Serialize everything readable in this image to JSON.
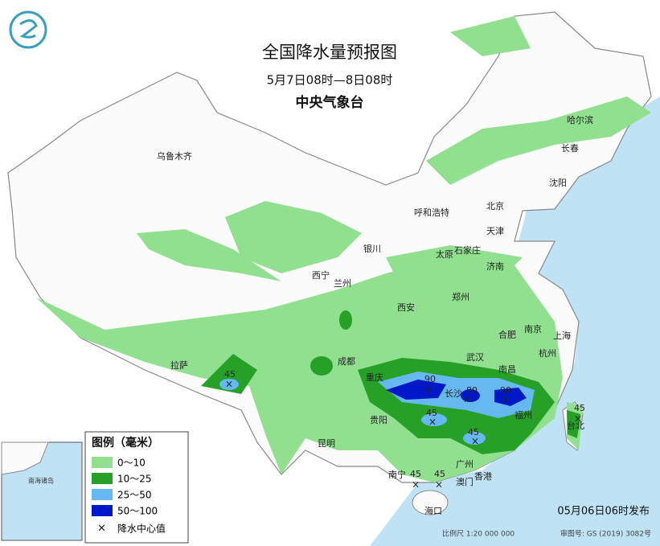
{
  "header": {
    "title": "全国降水量预报图",
    "period": "5月7日08时—8日08时",
    "issuer": "中央气象台"
  },
  "cities": [
    "乌鲁木齐",
    "哈尔滨",
    "长春",
    "沈阳",
    "呼和浩特",
    "北京",
    "天津",
    "石家庄",
    "太原",
    "银川",
    "西宁",
    "兰州",
    "济南",
    "郑州",
    "西安",
    "合肥",
    "南京",
    "上海",
    "杭州",
    "武汉",
    "成都",
    "拉萨",
    "重庆",
    "长沙",
    "南昌",
    "福州",
    "台北",
    "贵阳",
    "昆明",
    "南宁",
    "广州",
    "香港",
    "澳门",
    "海口"
  ],
  "centers": [
    45,
    90,
    80,
    90,
    45,
    45,
    45,
    45,
    45
  ],
  "legend": {
    "title": "图例（毫米）",
    "items": [
      "0～10",
      "10～25",
      "25～50",
      "50～100"
    ],
    "center_label": "降水中心值"
  },
  "inset": {
    "label": "南海诸岛"
  },
  "footer": {
    "issued": "05月06日06时发布",
    "scale": "比例尺 1:20 000 000",
    "review": "审图号: GS (2019) 3082号"
  }
}
